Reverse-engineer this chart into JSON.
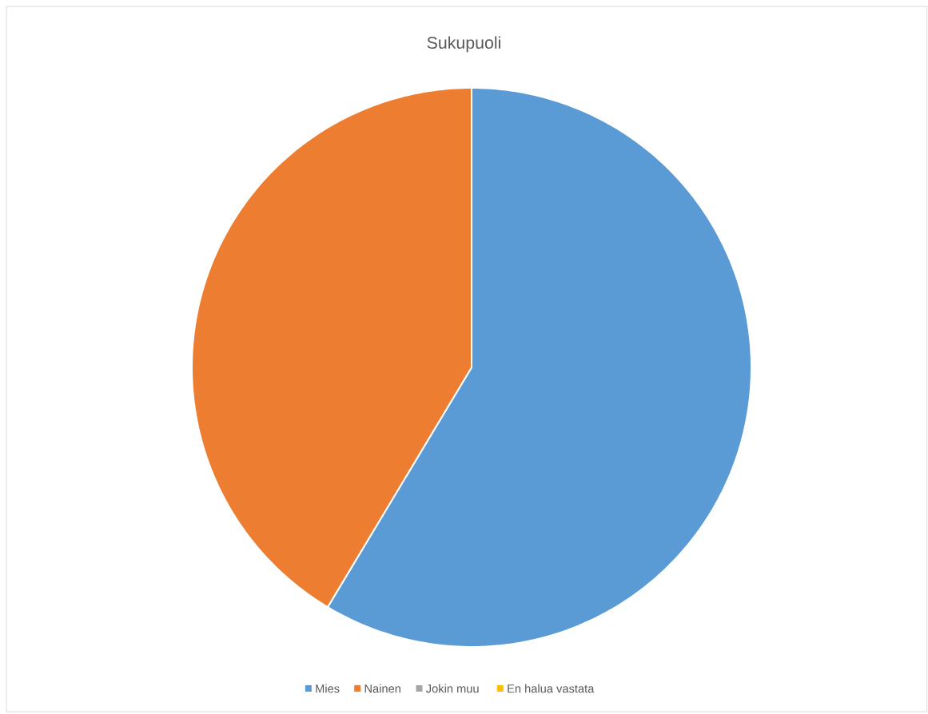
{
  "chart_data": {
    "type": "pie",
    "title": "Sukupuoli",
    "categories": [
      "Mies",
      "Nainen",
      "Jokin muu",
      "En halua vastata"
    ],
    "values": [
      58.6,
      41.4,
      0,
      0
    ],
    "colors": [
      "#5b9bd5",
      "#ed7d31",
      "#a5a5a5",
      "#ffc000"
    ],
    "legend": "bottom"
  }
}
